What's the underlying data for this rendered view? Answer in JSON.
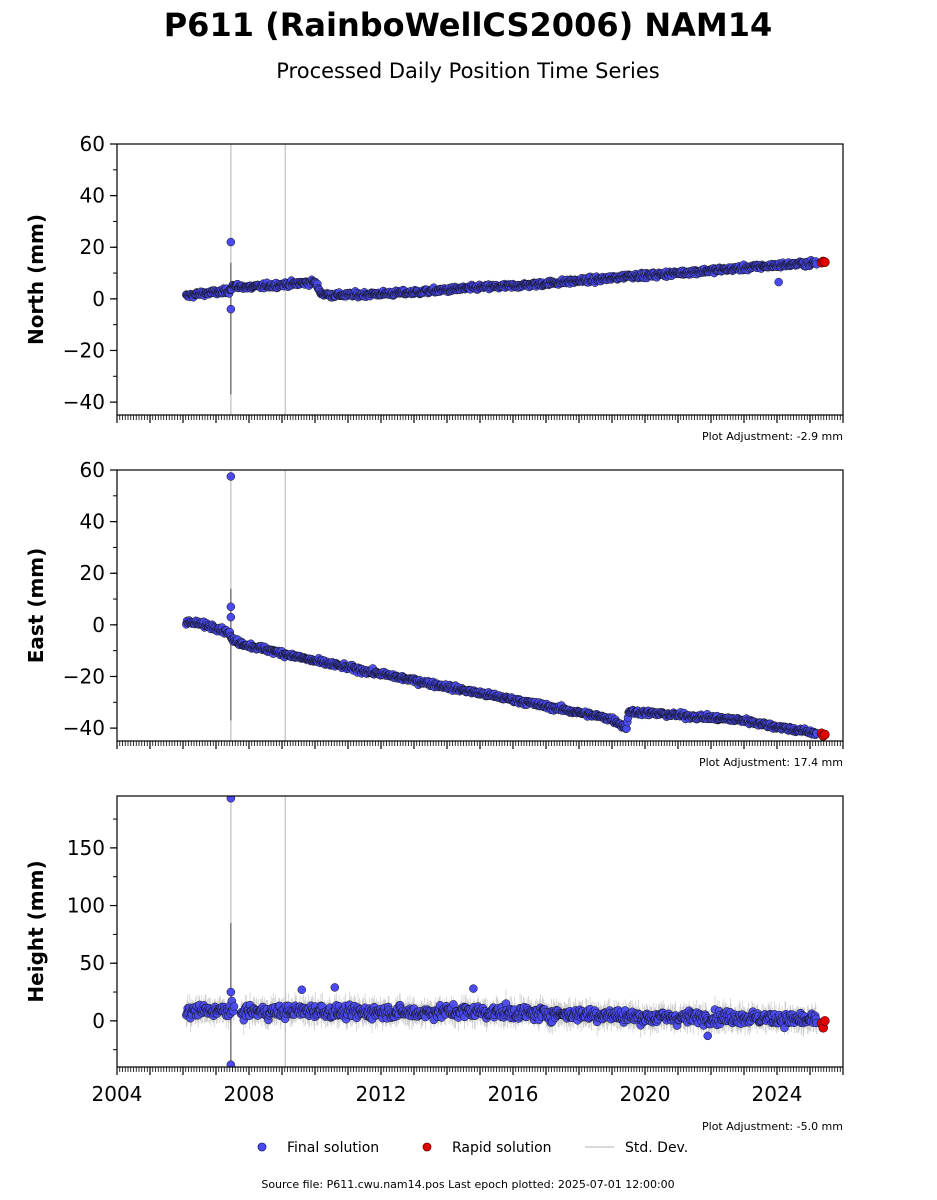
{
  "title": "P611 (RainboWellCS2006) NAM14",
  "subtitle": "Processed Daily Position Time Series",
  "legend": {
    "final": "Final solution",
    "rapid": "Rapid solution",
    "std": "Std. Dev."
  },
  "footer": "Source file: P611.cwu.nam14.pos  Last epoch plotted: 2025-07-01 12:00:00",
  "colors": {
    "final": "#4a4af0",
    "rapid": "#e00000",
    "std": "#cccccc",
    "edge": "#111111"
  },
  "chart_data": [
    {
      "type": "scatter",
      "ylabel": "North (mm)",
      "adjustment": "Plot Adjustment: -2.9 mm",
      "ylim": [
        -45,
        60
      ],
      "yticks": [
        -40,
        -20,
        0,
        20,
        40,
        60
      ],
      "xlim": [
        2004,
        2026
      ],
      "xticks": [
        2004,
        2008,
        2012,
        2016,
        2020,
        2024
      ],
      "show_xticklabels": false,
      "vlines": [
        2007.45,
        2009.1
      ],
      "series": [
        {
          "name": "Final solution",
          "kind": "final",
          "x": [
            2006.1,
            2006.5,
            2007.0,
            2007.4,
            2007.5,
            2008.0,
            2008.5,
            2009.0,
            2009.5,
            2010.0,
            2010.2,
            2010.5,
            2011.0,
            2012.0,
            2013.0,
            2014.0,
            2015.0,
            2016.0,
            2017.0,
            2018.0,
            2019.0,
            2019.5,
            2020.0,
            2021.0,
            2022.0,
            2023.0,
            2024.0,
            2025.2
          ],
          "y": [
            1.0,
            2.0,
            2.5,
            3.0,
            5.0,
            4.5,
            5.0,
            5.5,
            6.0,
            6.5,
            2.0,
            1.5,
            1.5,
            2.0,
            2.5,
            3.5,
            4.5,
            5.0,
            6.0,
            7.0,
            8.0,
            9.0,
            9.0,
            10.0,
            11.0,
            12.0,
            13.0,
            14.0
          ]
        },
        {
          "name": "Rapid solution",
          "kind": "rapid",
          "x": [
            2025.35,
            2025.4,
            2025.45
          ],
          "y": [
            14.0,
            14.5,
            14.2
          ]
        }
      ],
      "outliers": [
        {
          "x": 2007.45,
          "y": 22
        },
        {
          "x": 2007.45,
          "y": -4
        },
        {
          "x": 2024.05,
          "y": 6.5
        }
      ]
    },
    {
      "type": "scatter",
      "ylabel": "East (mm)",
      "adjustment": "Plot Adjustment: 17.4 mm",
      "ylim": [
        -45,
        60
      ],
      "yticks": [
        -40,
        -20,
        0,
        20,
        40,
        60
      ],
      "xlim": [
        2004,
        2026
      ],
      "xticks": [
        2004,
        2008,
        2012,
        2016,
        2020,
        2024
      ],
      "show_xticklabels": false,
      "vlines": [
        2007.45,
        2009.1
      ],
      "series": [
        {
          "name": "Final solution",
          "kind": "final",
          "x": [
            2006.1,
            2006.5,
            2007.0,
            2007.4,
            2007.5,
            2008.0,
            2009.0,
            2010.0,
            2011.0,
            2012.0,
            2013.0,
            2014.0,
            2015.0,
            2016.0,
            2017.0,
            2018.0,
            2019.0,
            2019.45,
            2019.5,
            2020.0,
            2021.0,
            2022.0,
            2023.0,
            2024.0,
            2025.2
          ],
          "y": [
            1.0,
            0.5,
            -1.0,
            -3.0,
            -6.0,
            -8.0,
            -11.0,
            -14.0,
            -16.5,
            -19.0,
            -21.5,
            -24.0,
            -26.5,
            -29.0,
            -31.5,
            -34.0,
            -36.5,
            -40.0,
            -33.5,
            -34.0,
            -35.0,
            -36.0,
            -37.0,
            -39.5,
            -42.0
          ]
        },
        {
          "name": "Rapid solution",
          "kind": "rapid",
          "x": [
            2025.35,
            2025.4,
            2025.45
          ],
          "y": [
            -42.0,
            -43.0,
            -42.5
          ]
        }
      ],
      "outliers": [
        {
          "x": 2007.45,
          "y": 57.5
        },
        {
          "x": 2007.45,
          "y": 7
        },
        {
          "x": 2007.45,
          "y": 3
        }
      ]
    },
    {
      "type": "scatter",
      "ylabel": "Height (mm)",
      "adjustment": "Plot Adjustment: -5.0 mm",
      "ylim": [
        -40,
        195
      ],
      "yticks": [
        0,
        50,
        100,
        150
      ],
      "xlim": [
        2004,
        2026
      ],
      "xticks": [
        2004,
        2008,
        2012,
        2016,
        2020,
        2024
      ],
      "show_xticklabels": true,
      "vlines": [
        2007.45,
        2009.1
      ],
      "series": [
        {
          "name": "Final solution",
          "kind": "final",
          "x": [
            2006.1,
            2007.0,
            2008.0,
            2009.0,
            2010.0,
            2011.0,
            2012.0,
            2013.0,
            2014.0,
            2015.0,
            2016.0,
            2017.0,
            2018.0,
            2019.0,
            2020.0,
            2021.0,
            2022.0,
            2023.0,
            2024.0,
            2025.2
          ],
          "y": [
            8.0,
            9.0,
            8.0,
            8.0,
            9.0,
            7.0,
            8.0,
            7.0,
            8.0,
            8.0,
            7.0,
            6.0,
            6.0,
            5.0,
            3.0,
            3.0,
            3.0,
            3.0,
            2.0,
            0.0
          ]
        },
        {
          "name": "Rapid solution",
          "kind": "rapid",
          "x": [
            2025.35,
            2025.4,
            2025.45
          ],
          "y": [
            -2.0,
            -6.0,
            0.0
          ]
        }
      ],
      "outliers": [
        {
          "x": 2007.45,
          "y": 193
        },
        {
          "x": 2007.45,
          "y": -38
        },
        {
          "x": 2007.45,
          "y": 25
        },
        {
          "x": 2014.8,
          "y": 28
        },
        {
          "x": 2010.6,
          "y": 29
        },
        {
          "x": 2009.6,
          "y": 27
        },
        {
          "x": 2021.9,
          "y": -13
        }
      ]
    }
  ]
}
